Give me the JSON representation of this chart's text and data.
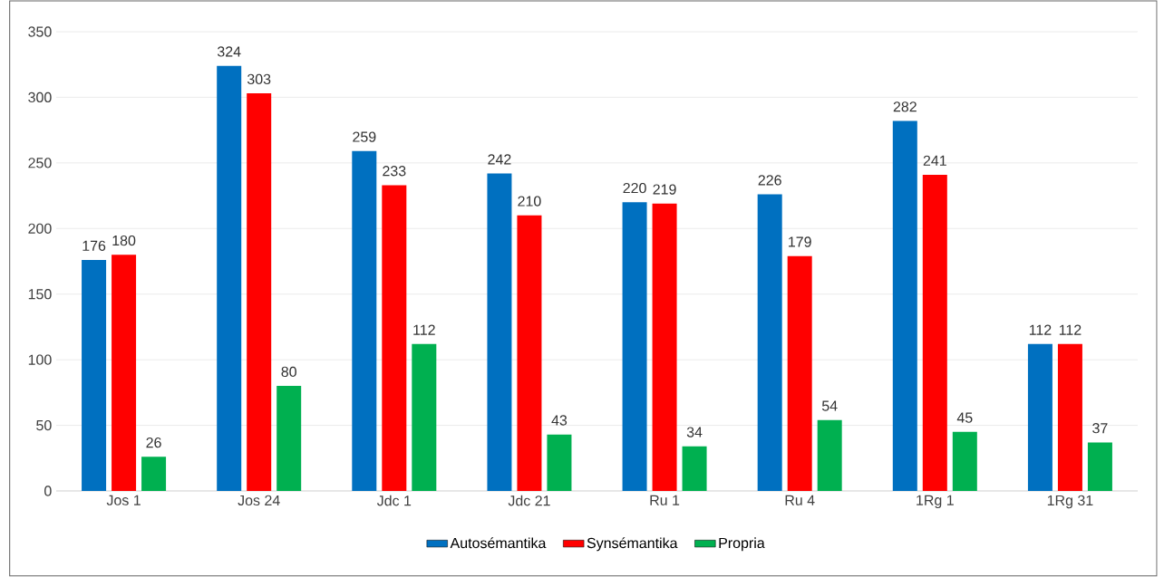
{
  "chart_data": {
    "type": "bar",
    "categories": [
      "Jos 1",
      "Jos 24",
      "Jdc 1",
      "Jdc 21",
      "Ru 1",
      "Ru 4",
      "1Rg 1",
      "1Rg 31"
    ],
    "series": [
      {
        "name": "Autosémantika",
        "color": "#0070c0",
        "values": [
          176,
          324,
          259,
          242,
          220,
          226,
          282,
          112
        ]
      },
      {
        "name": "Synsémantika",
        "color": "#ff0000",
        "values": [
          180,
          303,
          233,
          210,
          219,
          179,
          241,
          112
        ]
      },
      {
        "name": "Propria",
        "color": "#00b050",
        "values": [
          26,
          80,
          112,
          43,
          34,
          54,
          45,
          37
        ]
      }
    ],
    "ylim": [
      0,
      350
    ],
    "yticks": [
      0,
      50,
      100,
      150,
      200,
      250,
      300,
      350
    ],
    "grid": "y",
    "legend": "bottom",
    "data_labels": true
  }
}
